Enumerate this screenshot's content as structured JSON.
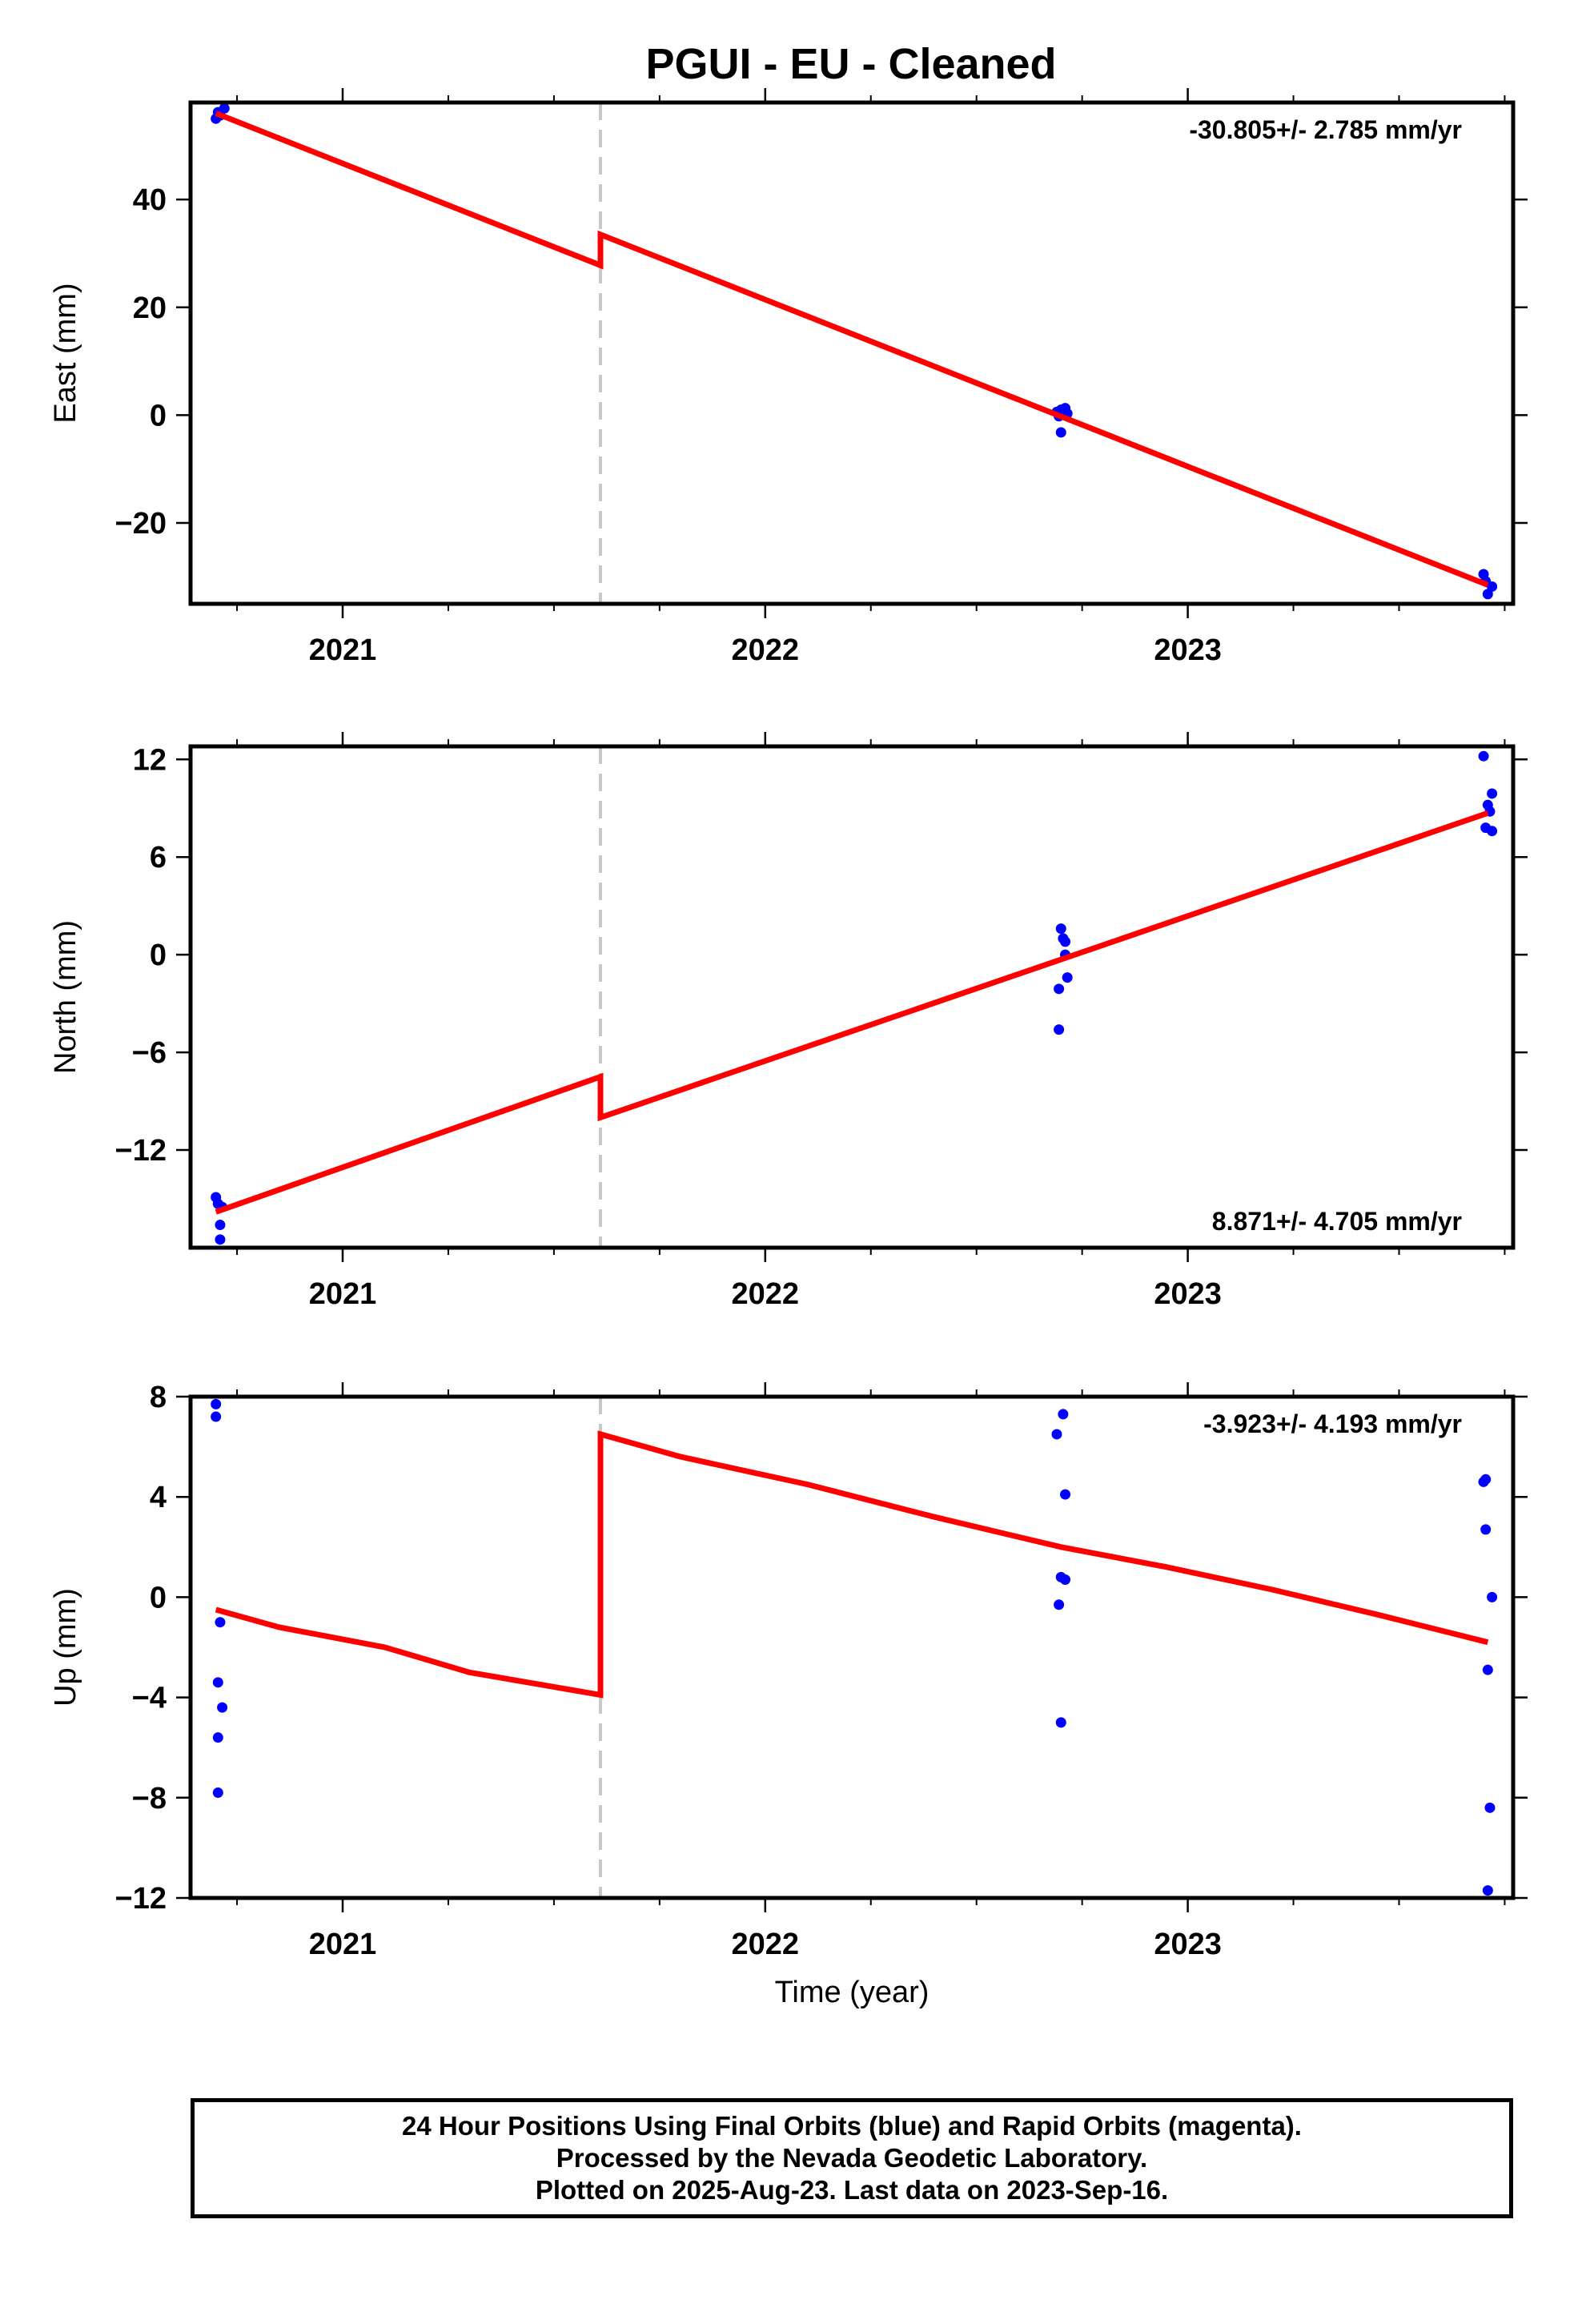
{
  "title": "PGUI  - EU - Cleaned",
  "colors": {
    "fit": "#ff0000",
    "final_orbits": "#0000ff",
    "step_marker": "#c8c8c8",
    "frame": "#000000"
  },
  "chart_data": [
    {
      "type": "scatter",
      "component": "east",
      "ylabel": "East (mm)",
      "xlabel": "",
      "x_tick_labels": [
        "2021",
        "2022",
        "2023"
      ],
      "x_ticks": [
        2021,
        2022,
        2023
      ],
      "xlim": [
        2020.64,
        2023.77
      ],
      "ylim": [
        -35,
        58
      ],
      "y_ticks": [
        -20,
        0,
        20,
        40
      ],
      "y_tick_labels": [
        "−20",
        "0",
        "20",
        "40"
      ],
      "rate_label": "-30.805+/- 2.785 mm/yr",
      "rate_label_position": "top-right",
      "step_epoch": 2021.61,
      "fit_line": [
        [
          2020.7,
          56.0
        ],
        [
          2021.61,
          27.8
        ],
        [
          2021.61,
          33.5
        ],
        [
          2023.71,
          -31.5
        ]
      ],
      "points": [
        [
          2020.7,
          55.0
        ],
        [
          2020.705,
          56.2
        ],
        [
          2020.71,
          55.6
        ],
        [
          2020.72,
          56.9
        ],
        [
          2022.69,
          0.6
        ],
        [
          2022.695,
          -0.2
        ],
        [
          2022.7,
          1.0
        ],
        [
          2022.7,
          -3.2
        ],
        [
          2022.71,
          1.3
        ],
        [
          2022.715,
          0.3
        ],
        [
          2023.7,
          -29.5
        ],
        [
          2023.705,
          -30.8
        ],
        [
          2023.71,
          -33.2
        ],
        [
          2023.72,
          -31.8
        ]
      ]
    },
    {
      "type": "scatter",
      "component": "north",
      "ylabel": "North (mm)",
      "xlabel": "",
      "x_tick_labels": [
        "2021",
        "2022",
        "2023"
      ],
      "x_ticks": [
        2021,
        2022,
        2023
      ],
      "xlim": [
        2020.64,
        2023.77
      ],
      "ylim": [
        -18,
        12.8
      ],
      "y_ticks": [
        -12,
        -6,
        0,
        6,
        12
      ],
      "y_tick_labels": [
        "−12",
        "−6",
        "0",
        "6",
        "12"
      ],
      "rate_label": "8.871+/- 4.705 mm/yr",
      "rate_label_position": "bottom-right",
      "step_epoch": 2021.61,
      "fit_line": [
        [
          2020.7,
          -15.8
        ],
        [
          2021.61,
          -7.5
        ],
        [
          2021.61,
          -10.0
        ],
        [
          2023.71,
          8.7
        ]
      ],
      "points": [
        [
          2020.7,
          -14.9
        ],
        [
          2020.705,
          -15.3
        ],
        [
          2020.71,
          -16.6
        ],
        [
          2020.71,
          -17.5
        ],
        [
          2020.715,
          -15.5
        ],
        [
          2022.695,
          -2.1
        ],
        [
          2022.695,
          -4.6
        ],
        [
          2022.7,
          1.6
        ],
        [
          2022.705,
          1.0
        ],
        [
          2022.71,
          0.8
        ],
        [
          2022.71,
          0.0
        ],
        [
          2022.715,
          -1.4
        ],
        [
          2023.7,
          12.2
        ],
        [
          2023.705,
          7.8
        ],
        [
          2023.71,
          9.2
        ],
        [
          2023.715,
          8.8
        ],
        [
          2023.72,
          7.6
        ],
        [
          2023.72,
          9.9
        ]
      ]
    },
    {
      "type": "scatter",
      "component": "up",
      "ylabel": "Up (mm)",
      "xlabel": "Time (year)",
      "x_tick_labels": [
        "2021",
        "2022",
        "2023"
      ],
      "x_ticks": [
        2021,
        2022,
        2023
      ],
      "xlim": [
        2020.64,
        2023.77
      ],
      "ylim": [
        -12,
        8
      ],
      "y_ticks": [
        -12,
        -8,
        -4,
        0,
        4,
        8
      ],
      "y_tick_labels": [
        "−12",
        "−8",
        "−4",
        "0",
        "4",
        "8"
      ],
      "rate_label": "-3.923+/- 4.193 mm/yr",
      "rate_label_position": "top-right",
      "step_epoch": 2021.61,
      "fit_line": [
        [
          2020.7,
          -0.5
        ],
        [
          2020.85,
          -1.2
        ],
        [
          2021.1,
          -2.0
        ],
        [
          2021.3,
          -3.0
        ],
        [
          2021.61,
          -3.9
        ],
        [
          2021.61,
          6.5
        ],
        [
          2021.8,
          5.6
        ],
        [
          2022.1,
          4.5
        ],
        [
          2022.4,
          3.2
        ],
        [
          2022.7,
          2.0
        ],
        [
          2022.95,
          1.2
        ],
        [
          2023.2,
          0.3
        ],
        [
          2023.45,
          -0.7
        ],
        [
          2023.71,
          -1.8
        ]
      ],
      "points": [
        [
          2020.7,
          7.7
        ],
        [
          2020.7,
          7.2
        ],
        [
          2020.705,
          -3.4
        ],
        [
          2020.705,
          -5.6
        ],
        [
          2020.705,
          -7.8
        ],
        [
          2020.71,
          -1.0
        ],
        [
          2020.715,
          -4.4
        ],
        [
          2022.69,
          6.5
        ],
        [
          2022.695,
          -0.3
        ],
        [
          2022.7,
          -5.0
        ],
        [
          2022.7,
          0.8
        ],
        [
          2022.705,
          7.3
        ],
        [
          2022.71,
          4.1
        ],
        [
          2022.71,
          0.7
        ],
        [
          2023.7,
          4.6
        ],
        [
          2023.705,
          4.7
        ],
        [
          2023.705,
          2.7
        ],
        [
          2023.71,
          -2.9
        ],
        [
          2023.71,
          -11.7
        ],
        [
          2023.715,
          -8.4
        ],
        [
          2023.72,
          0.0
        ]
      ]
    }
  ],
  "footer": {
    "line1": "24 Hour Positions Using Final Orbits (blue) and Rapid Orbits (magenta).",
    "line2": "Processed by the Nevada Geodetic Laboratory.",
    "line3": "Plotted on 2025-Aug-23. Last data on 2023-Sep-16."
  }
}
